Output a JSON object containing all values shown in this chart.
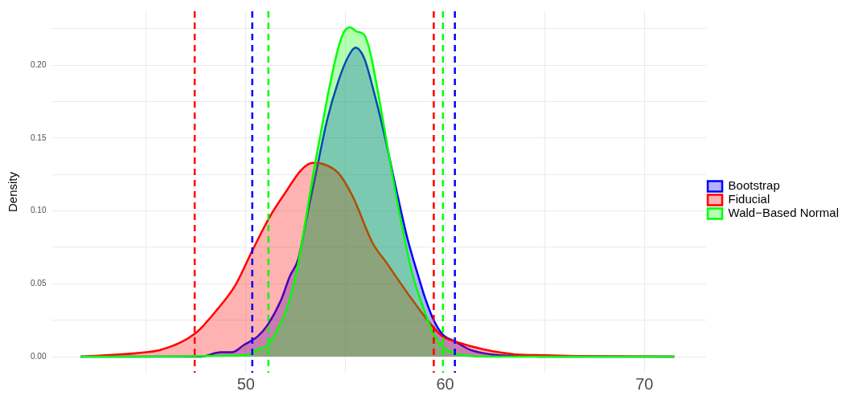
{
  "chart_data": {
    "type": "area",
    "ylabel": "Density",
    "legend": "right",
    "grid": true,
    "line_style": "solid",
    "marker": "none",
    "xlim": [
      40.3,
      73.1
    ],
    "ylim": [
      -0.011,
      0.237
    ],
    "xticks": [
      {
        "value": 45,
        "label": null
      },
      50,
      {
        "value": 55,
        "label": null
      },
      60,
      {
        "value": 65,
        "label": null
      },
      70
    ],
    "yticks": [
      {
        "value": 0,
        "label": "0.00"
      },
      {
        "value": 0.025,
        "label": null
      },
      {
        "value": 0.05,
        "label": "0.05"
      },
      {
        "value": 0.075,
        "label": null
      },
      {
        "value": 0.1,
        "label": "0.10"
      },
      {
        "value": 0.125,
        "label": null
      },
      {
        "value": 0.15,
        "label": "0.15"
      },
      {
        "value": 0.175,
        "label": null
      },
      {
        "value": 0.2,
        "label": "0.20"
      },
      {
        "value": 0.225,
        "label": null
      }
    ],
    "series": [
      {
        "name": "Bootstrap",
        "color": "#0000ff",
        "x": [
          41.7,
          47.7,
          48.75,
          49.3,
          49.9,
          50.6,
          51.1,
          51.77,
          52.2,
          52.63,
          53.06,
          53.49,
          54.07,
          54.64,
          55.14,
          55.5,
          55.93,
          56.36,
          56.94,
          57.51,
          58.09,
          58.66,
          59.0,
          59.41,
          59.87,
          60.48,
          61.24,
          62.3,
          63.8,
          65,
          71.5
        ],
        "values": [
          0,
          0,
          0.003,
          0.003,
          0.008,
          0.014,
          0.022,
          0.039,
          0.055,
          0.067,
          0.096,
          0.124,
          0.162,
          0.189,
          0.206,
          0.212,
          0.205,
          0.185,
          0.153,
          0.117,
          0.082,
          0.055,
          0.04,
          0.0255,
          0.0153,
          0.0106,
          0.0048,
          0.0016,
          0.0005,
          0,
          0
        ]
      },
      {
        "name": "Fiducial",
        "color": "#ff0000",
        "x": [
          41.7,
          45,
          45.8,
          47.46,
          48.6,
          49.47,
          50.33,
          51.2,
          52.05,
          52.77,
          53.35,
          53.92,
          54.64,
          55.36,
          56.36,
          57.08,
          58.09,
          59.24,
          59.87,
          60.48,
          61.98,
          63.5,
          65,
          66.5,
          71.5
        ],
        "values": [
          0,
          0.003,
          0.005,
          0.016,
          0.033,
          0.049,
          0.073,
          0.096,
          0.114,
          0.128,
          0.133,
          0.132,
          0.126,
          0.11,
          0.078,
          0.064,
          0.044,
          0.023,
          0.0139,
          0.0105,
          0.0048,
          0.0016,
          0.001,
          0.0005,
          0
        ]
      },
      {
        "name": "Wald−Based Normal",
        "color": "#00ff00",
        "x": [
          41.7,
          50.04,
          50.6,
          51.1,
          51.6,
          52.05,
          52.49,
          52.92,
          53.35,
          53.78,
          54.21,
          54.64,
          54.93,
          55.22,
          55.57,
          55.93,
          56.22,
          56.65,
          57.22,
          57.8,
          58.37,
          58.95,
          59.41,
          59.87,
          60.48,
          61.2,
          62,
          71.5
        ],
        "values": [
          0,
          0.001,
          0.005,
          0.008,
          0.019,
          0.033,
          0.055,
          0.087,
          0.123,
          0.155,
          0.186,
          0.212,
          0.223,
          0.226,
          0.223,
          0.221,
          0.21,
          0.18,
          0.135,
          0.092,
          0.056,
          0.032,
          0.0155,
          0.0071,
          0.0024,
          0.0005,
          0,
          0
        ]
      }
    ],
    "ref_lines": [
      {
        "axis": "x",
        "value": 47.43,
        "color": "#ff0000",
        "line_style": "dashed"
      },
      {
        "axis": "x",
        "value": 50.32,
        "color": "#0000ff",
        "line_style": "dashed"
      },
      {
        "axis": "x",
        "value": 51.13,
        "color": "#00ff00",
        "line_style": "dashed"
      },
      {
        "axis": "x",
        "value": 59.43,
        "color": "#ff0000",
        "line_style": "dashed"
      },
      {
        "axis": "x",
        "value": 59.89,
        "color": "#00ff00",
        "line_style": "dashed"
      },
      {
        "axis": "x",
        "value": 60.49,
        "color": "#0000ff",
        "line_style": "dashed"
      }
    ]
  }
}
